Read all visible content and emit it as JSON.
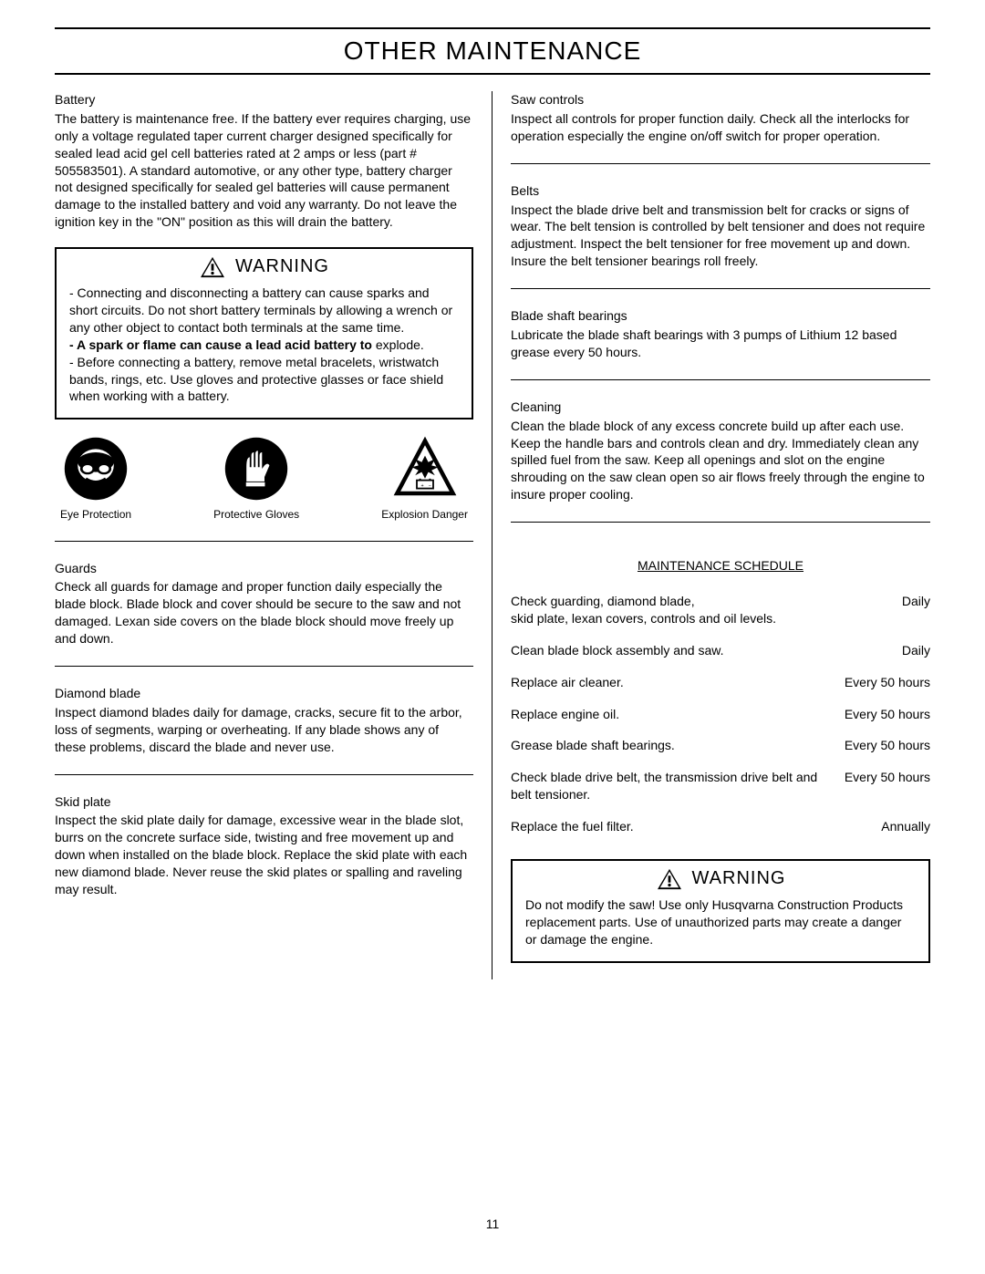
{
  "page_title": "OTHER MAINTENANCE",
  "page_number": "11",
  "left": {
    "battery": {
      "title": "Battery",
      "text": "The battery is maintenance free. If the battery ever requires charging, use only a voltage regulated taper current charger designed specifically for sealed lead acid gel cell batteries rated at 2 amps or less (part # 505583501). A standard automotive, or any other type, battery charger not designed specifically for sealed gel batteries will cause permanent damage to the installed battery and void any warranty. Do not leave the ignition key in the \"ON\" position as this will drain the battery."
    },
    "warning1": {
      "label": "WARNING",
      "line1": "- Connecting and disconnecting a battery can cause sparks and short circuits.  Do not short battery terminals by allowing a wrench or any other object to contact both terminals at the same time.",
      "line2_bold": "- A spark or flame can cause a lead acid battery to",
      "line2_rest": "explode.",
      "line3": "- Before connecting a battery, remove metal bracelets, wristwatch bands, rings, etc.  Use gloves and protective glasses or face shield when working with a battery."
    },
    "safety_icons": [
      {
        "label": "Eye Protection"
      },
      {
        "label": "Protective Gloves"
      },
      {
        "label": "Explosion Danger"
      }
    ],
    "guards": {
      "title": "Guards",
      "text": "Check all guards for damage and proper function daily especially the blade block. Blade block and cover should be secure to the saw and not damaged. Lexan side covers on the blade block should move freely up and down."
    },
    "diamond": {
      "title": "Diamond blade",
      "text": "Inspect diamond blades daily for damage, cracks, secure fit to the arbor, loss of segments, warping or overheating. If any blade shows any of these problems, discard the blade and never use."
    },
    "skid": {
      "title": "Skid plate",
      "text": "Inspect the skid plate daily for damage, excessive wear in the blade slot, burrs on the concrete surface side, twisting and free movement up and down when installed on the blade block. Replace the skid plate with each new diamond blade. Never reuse the skid plates or spalling and raveling may result."
    }
  },
  "right": {
    "saw_controls": {
      "title": "Saw controls",
      "text": "Inspect all controls for proper function daily. Check all the interlocks for operation especially the engine on/off switch for proper operation."
    },
    "belts": {
      "title": "Belts",
      "text": "Inspect the blade drive belt and transmission belt for cracks or signs of wear. The belt tension is controlled by belt tensioner and does not require adjustment. Inspect the belt tensioner for free movement up and down. Insure the belt tensioner bearings roll freely."
    },
    "bearings": {
      "title": "Blade shaft bearings",
      "text": "Lubricate the blade shaft bearings with 3 pumps of Lithium 12 based grease every 50 hours."
    },
    "cleaning": {
      "title": "Cleaning",
      "text": "Clean the blade block of any excess concrete build up after each use. Keep the handle bars and controls clean and dry. Immediately clean any spilled fuel from the saw. Keep all openings and slot on the engine shrouding on the saw clean open so air flows freely through the engine to insure proper cooling."
    },
    "schedule": {
      "title": "MAINTENANCE SCHEDULE",
      "rows": [
        {
          "task": "Check guarding, diamond blade,\nskid plate, lexan covers, controls and oil levels.",
          "freq": "Daily"
        },
        {
          "task": "Clean blade block assembly and saw.",
          "freq": "Daily"
        },
        {
          "task": "Replace air cleaner.",
          "freq": "Every 50 hours"
        },
        {
          "task": "Replace engine oil.",
          "freq": "Every 50 hours"
        },
        {
          "task": "Grease blade shaft bearings.",
          "freq": "Every 50 hours"
        },
        {
          "task": "Check blade drive belt, the transmission drive belt and belt tensioner.",
          "freq": "Every 50 hours"
        },
        {
          "task": "Replace the fuel filter.",
          "freq": "Annually"
        }
      ]
    },
    "warning2": {
      "label": "WARNING",
      "text": "Do not modify the saw! Use only Husqvarna Construction Products replacement parts. Use of unauthorized parts may create a danger or damage the engine."
    }
  }
}
